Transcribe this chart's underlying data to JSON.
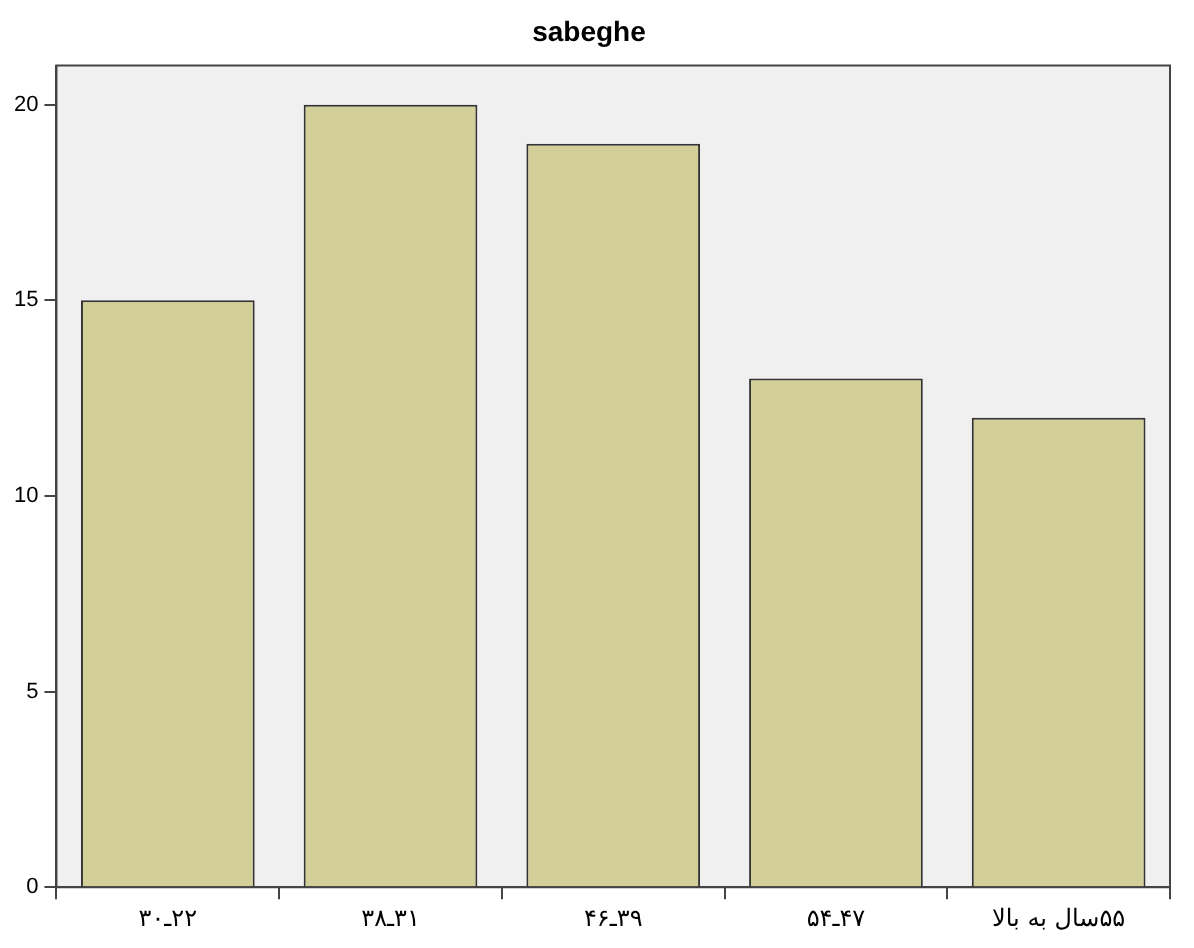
{
  "chart_data": {
    "type": "bar",
    "title": "sabeghe",
    "categories": [
      "۲۲ـ۳۰",
      "۳۱ـ۳۸",
      "۳۹ـ۴۶",
      "۴۷ـ۵۴",
      "۵۵سال به بالا"
    ],
    "values": [
      15,
      20,
      19,
      13,
      12
    ],
    "color": "#d3cf98",
    "ylim": [
      0,
      21
    ],
    "yticks": [
      0,
      5,
      10,
      15,
      20
    ],
    "grid": false,
    "legend": false
  }
}
